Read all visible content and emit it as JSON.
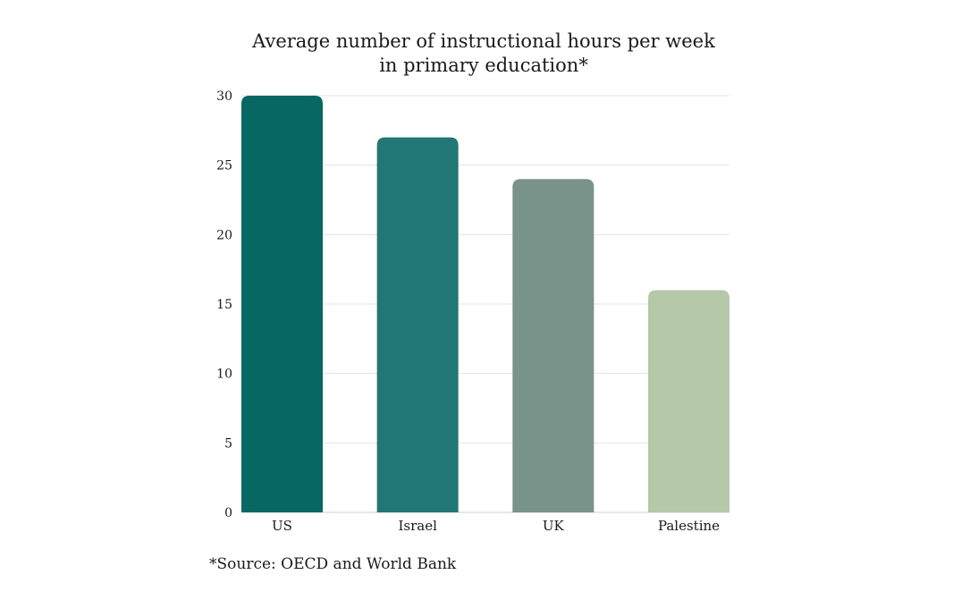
{
  "chart_data": {
    "type": "bar",
    "title_lines": [
      "Average number of instructional hours per week",
      "in primary education*"
    ],
    "categories": [
      "US",
      "Israel",
      "UK",
      "Palestine"
    ],
    "values": [
      30,
      27,
      24,
      16
    ],
    "bar_colors": [
      "#066763",
      "#217676",
      "#79938A",
      "#B5C9A9"
    ],
    "ylim": [
      0,
      30
    ],
    "yticks": [
      0,
      5,
      10,
      15,
      20,
      25,
      30
    ],
    "xlabel": "",
    "ylabel": "",
    "grid": true,
    "legend": "none"
  },
  "footnote": "*Source: OECD and World Bank"
}
